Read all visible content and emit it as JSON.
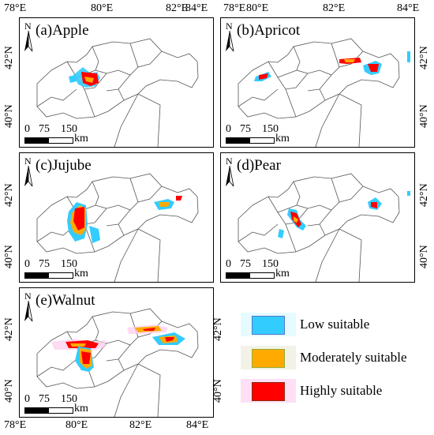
{
  "axes": {
    "lon_labels": [
      "78°E",
      "80°E",
      "82°E",
      "84°E"
    ],
    "lat_labels": [
      "42°N",
      "40°N"
    ]
  },
  "north_arrow_letter": "N",
  "scale": {
    "ticks": [
      "0",
      "75",
      "150"
    ],
    "unit": "km"
  },
  "panels": [
    {
      "id": "a",
      "title": "(a)Apple"
    },
    {
      "id": "b",
      "title": "(b)Apricot"
    },
    {
      "id": "c",
      "title": "(c)Jujube"
    },
    {
      "id": "d",
      "title": "(d)Pear"
    },
    {
      "id": "e",
      "title": "(e)Walnut"
    }
  ],
  "legend": {
    "items": [
      {
        "label": "Low suitable",
        "color": "#33ccff"
      },
      {
        "label": "Moderately suitable",
        "color": "#ffaa00"
      },
      {
        "label": "Highly suitable",
        "color": "#ff0000"
      }
    ]
  },
  "colors": {
    "low": "#33ccff",
    "moderate": "#ffaa00",
    "high": "#ff0000",
    "boundary": "#555555"
  }
}
